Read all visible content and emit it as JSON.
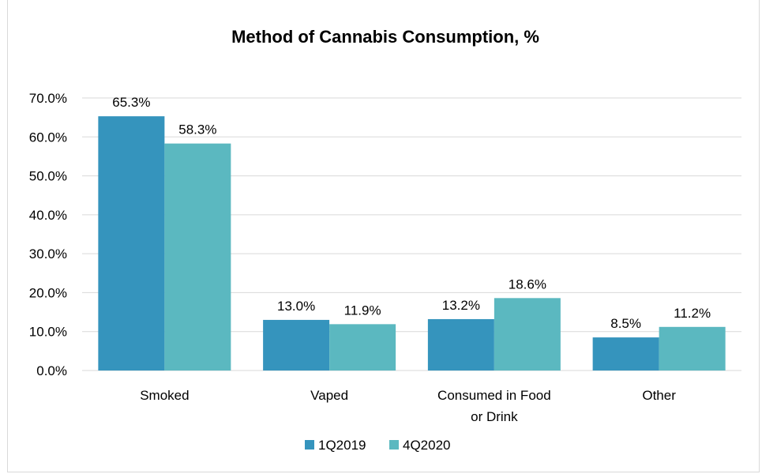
{
  "chart_data": {
    "type": "bar",
    "title": "Method of Cannabis Consumption, %",
    "categories": [
      "Smoked",
      "Vaped",
      "Consumed in Food or Drink",
      "Other"
    ],
    "category_lines": [
      [
        "Smoked"
      ],
      [
        "Vaped"
      ],
      [
        "Consumed in Food",
        "or Drink"
      ],
      [
        "Other"
      ]
    ],
    "series": [
      {
        "name": "1Q2019",
        "values": [
          65.3,
          13.0,
          13.2,
          8.5
        ],
        "labels": [
          "65.3%",
          "13.0%",
          "13.2%",
          "8.5%"
        ],
        "color": "#3594bd"
      },
      {
        "name": "4Q2020",
        "values": [
          58.3,
          11.9,
          18.6,
          11.2
        ],
        "labels": [
          "58.3%",
          "11.9%",
          "18.6%",
          "11.2%"
        ],
        "color": "#5bb8c0"
      }
    ],
    "yticks": [
      "0.0%",
      "10.0%",
      "20.0%",
      "30.0%",
      "40.0%",
      "50.0%",
      "60.0%",
      "70.0%"
    ],
    "ylim": [
      0,
      70
    ],
    "xlabel": "",
    "ylabel": "",
    "grid": true,
    "grid_color": "#d9d9d9",
    "legend_position": "bottom"
  }
}
